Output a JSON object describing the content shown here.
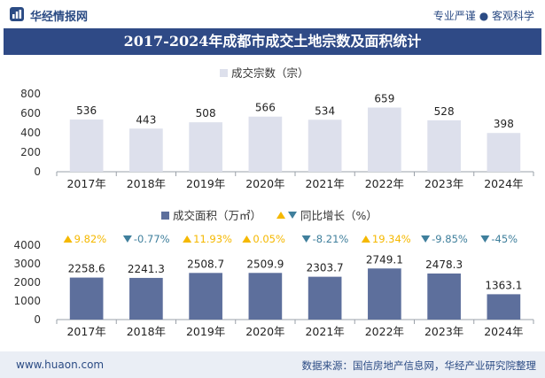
{
  "header": {
    "brand": "华经情报网",
    "tagline": "专业严谨 ● 客观科学"
  },
  "title": "2017-2024年成都市成交土地宗数及面积统计",
  "footer": {
    "url": "www.huaon.com",
    "source": "数据来源：国信房地产信息网，华经产业研究院整理"
  },
  "colors": {
    "brand": "#2b4b84",
    "title_bg": "#2f4a86",
    "bar_count": "#dde0ec",
    "bar_area": "#5d6f9c",
    "up": "#f5b800",
    "down": "#3f7f9c"
  },
  "chart_data": [
    {
      "type": "bar",
      "legend": "成交宗数（宗）",
      "categories": [
        "2017年",
        "2018年",
        "2019年",
        "2020年",
        "2021年",
        "2022年",
        "2023年",
        "2024年"
      ],
      "values": [
        536,
        443,
        508,
        566,
        534,
        659,
        528,
        398
      ],
      "ylim": [
        0,
        800
      ],
      "yticks": [
        0,
        200,
        400,
        600,
        800
      ]
    },
    {
      "type": "bar",
      "legend": "成交面积（万㎡）",
      "growth_legend": "同比增长（%）",
      "categories": [
        "2017年",
        "2018年",
        "2019年",
        "2020年",
        "2021年",
        "2022年",
        "2023年",
        "2024年"
      ],
      "values": [
        2258.6,
        2241.3,
        2508.7,
        2509.9,
        2303.7,
        2749.1,
        2478.3,
        1363.1
      ],
      "growth": [
        "9.82%",
        "-0.77%",
        "11.93%",
        "0.05%",
        "-8.21%",
        "19.34%",
        "-9.85%",
        "-45%"
      ],
      "growth_dir": [
        "up",
        "down",
        "up",
        "up",
        "down",
        "up",
        "down",
        "down"
      ],
      "ylim": [
        0,
        4000
      ],
      "yticks": [
        0,
        1000,
        2000,
        3000,
        4000
      ]
    }
  ]
}
